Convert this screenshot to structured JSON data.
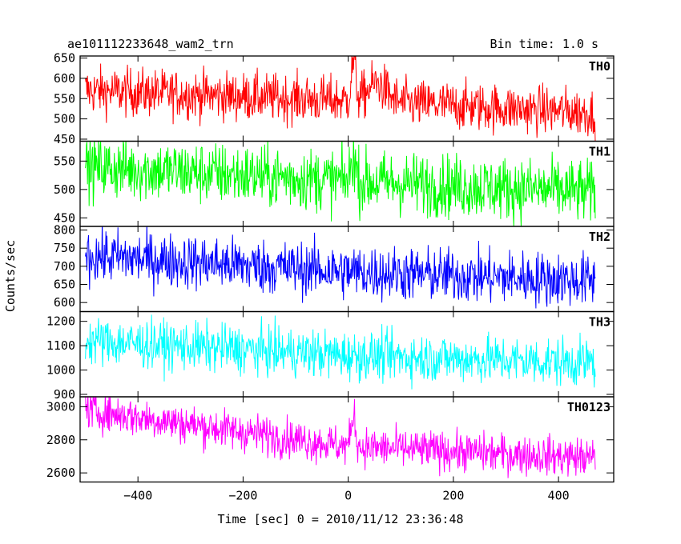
{
  "chart_data": {
    "type": "line",
    "header_left": "ae101112233648_wam2_trn",
    "header_right": "Bin time: 1.0 s",
    "xlabel": "Time [sec] 0 = 2010/11/12 23:36:48",
    "ylabel": "Counts/sec",
    "xlim": [
      -510,
      505
    ],
    "x_range": [
      -500,
      470
    ],
    "x_ticks": [
      -400,
      -200,
      0,
      200,
      400
    ],
    "panels": [
      {
        "name": "TH0",
        "color": "#ff0000",
        "ylim": [
          445,
          655
        ],
        "y_ticks": [
          450,
          500,
          550,
          600,
          650
        ],
        "trend_start": 570,
        "trend_mid": 545,
        "trend_end": 515,
        "noise": 30,
        "features": [
          {
            "time": 10,
            "peak": 640,
            "width": 6
          },
          {
            "time": 55,
            "peak": 590,
            "width": 25
          }
        ]
      },
      {
        "name": "TH1",
        "color": "#00ff00",
        "ylim": [
          435,
          585
        ],
        "y_ticks": [
          450,
          500,
          550
        ],
        "trend_start": 540,
        "trend_mid": 515,
        "trend_end": 495,
        "noise": 28,
        "features": [
          {
            "time": 10,
            "peak": 560,
            "width": 6
          }
        ]
      },
      {
        "name": "TH2",
        "color": "#0000ff",
        "ylim": [
          575,
          810
        ],
        "y_ticks": [
          600,
          650,
          700,
          750,
          800
        ],
        "trend_start": 730,
        "trend_mid": 685,
        "trend_end": 660,
        "noise": 38,
        "features": []
      },
      {
        "name": "TH3",
        "color": "#00ffff",
        "ylim": [
          890,
          1240
        ],
        "y_ticks": [
          900,
          1000,
          1100,
          1200
        ],
        "trend_start": 1120,
        "trend_mid": 1060,
        "trend_end": 1030,
        "noise": 50,
        "features": []
      },
      {
        "name": "TH0123",
        "color": "#ff00ff",
        "ylim": [
          2545,
          3060
        ],
        "y_ticks": [
          2600,
          2800,
          3000
        ],
        "trend_start": 2980,
        "trend_mid": 2760,
        "trend_end": 2690,
        "noise": 60,
        "features": [
          {
            "time": 10,
            "peak": 2950,
            "width": 6
          }
        ]
      }
    ]
  }
}
